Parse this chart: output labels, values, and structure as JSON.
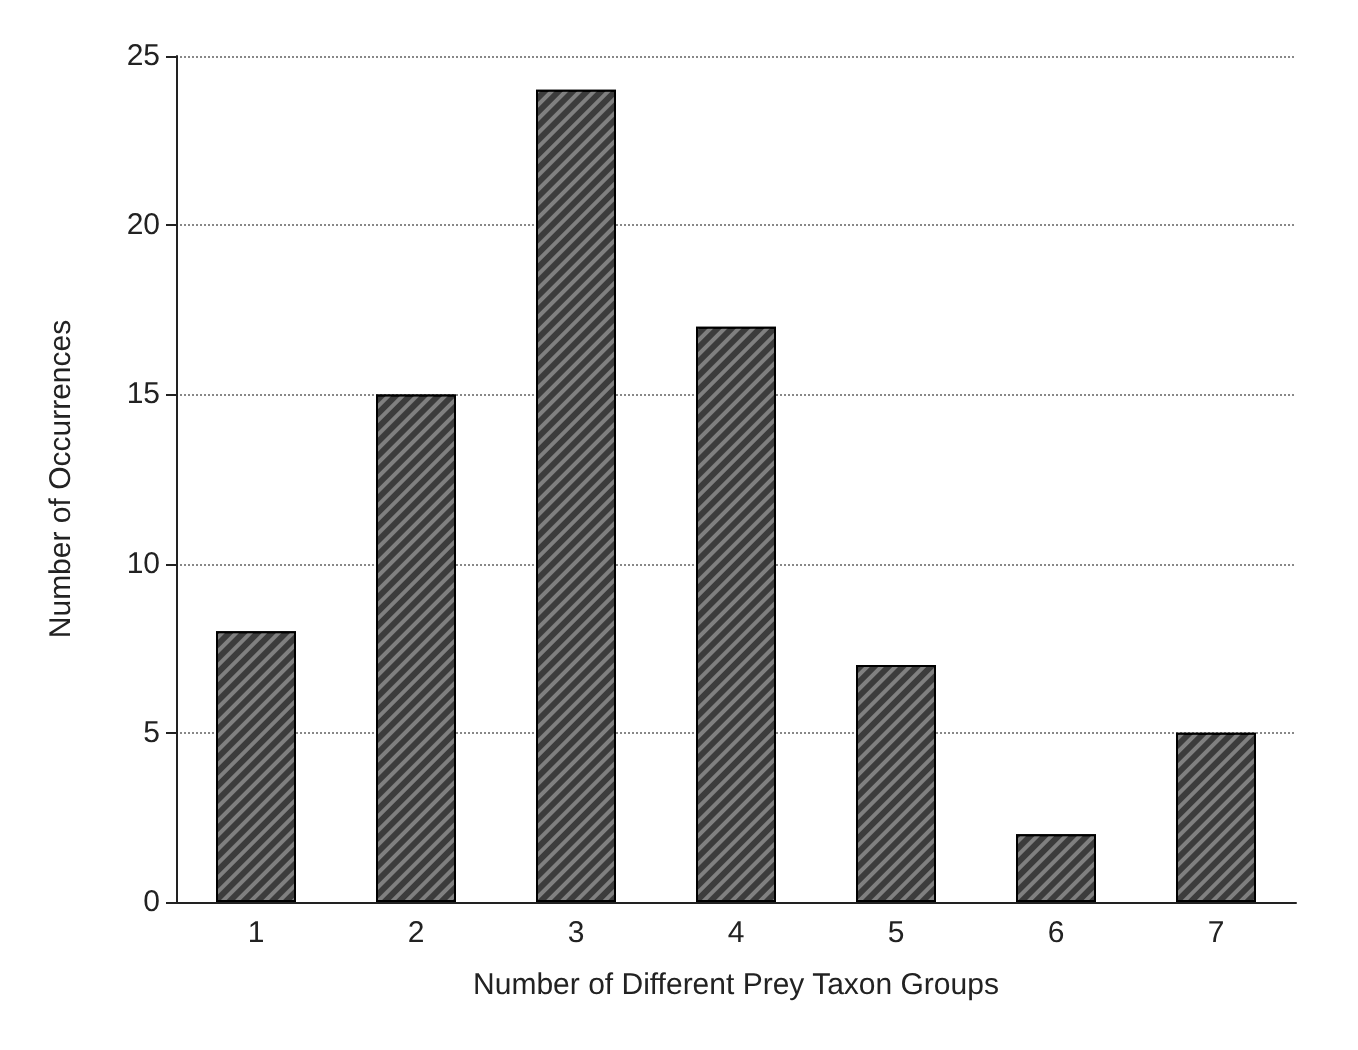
{
  "chart_data": {
    "type": "bar",
    "xlabel": "Number of Different Prey Taxon Groups",
    "ylabel": "Number of Occurrences",
    "categories": [
      "1",
      "2",
      "3",
      "4",
      "5",
      "6",
      "7"
    ],
    "values": [
      8,
      15,
      24,
      17,
      7,
      2,
      5
    ],
    "color": "#3c3c3c",
    "ylim": [
      0,
      25
    ],
    "yticks": [
      0,
      5,
      10,
      15,
      20,
      25
    ],
    "grid": "y"
  }
}
